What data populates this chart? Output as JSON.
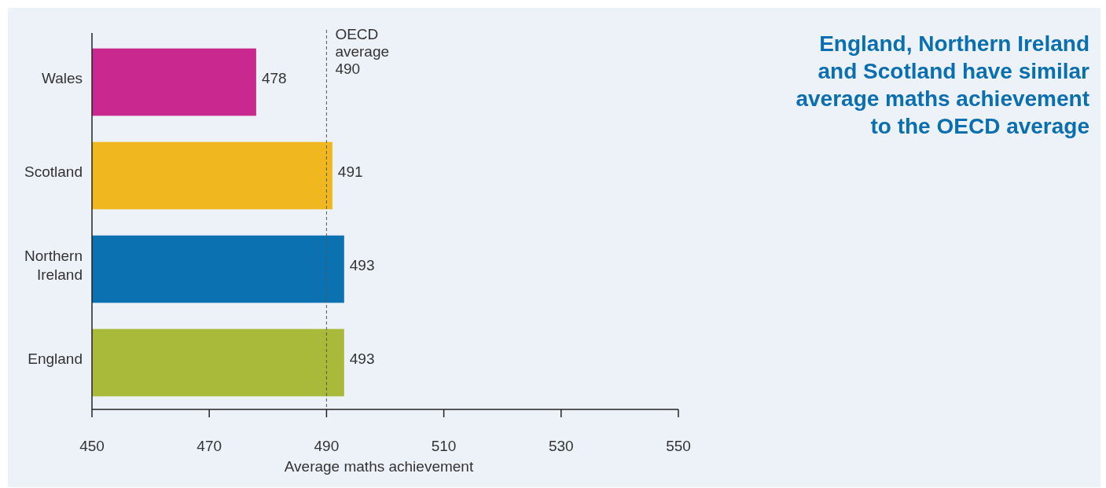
{
  "chart_data": {
    "type": "bar",
    "orientation": "horizontal",
    "title": "England, Northern Ireland and Scotland have similar average maths achievement to the OECD average",
    "xlabel": "Average maths achievement",
    "categories": [
      "Wales",
      "Scotland",
      "Northern Ireland",
      "England"
    ],
    "values": [
      478,
      491,
      493,
      493
    ],
    "colors": [
      "#c9288f",
      "#f0b71e",
      "#0b71b0",
      "#a9b939"
    ],
    "xlim": [
      450,
      550
    ],
    "xticks": [
      450,
      470,
      490,
      510,
      530,
      550
    ],
    "ref_lines": [
      {
        "axis": "x",
        "value": 490,
        "label": "OECD average 490",
        "line_style": "dashed",
        "color": "#555555"
      }
    ],
    "data_labels": true
  }
}
